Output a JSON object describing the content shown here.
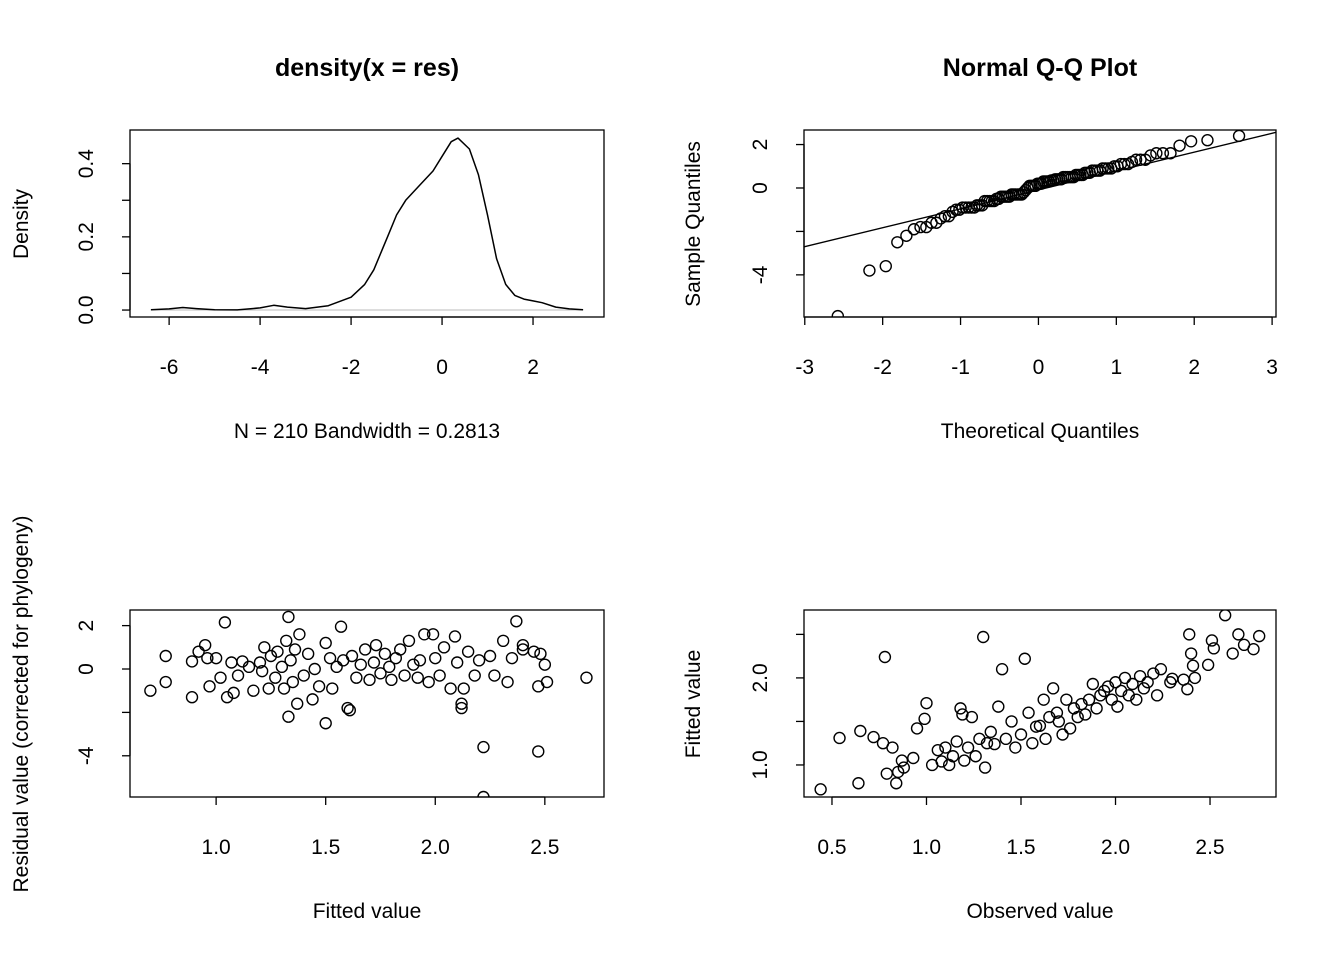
{
  "chart_data": [
    {
      "type": "line",
      "title": "density(x = res)",
      "xlabel": "N = 210   Bandwidth = 0.2813",
      "ylabel": "Density",
      "xlim": [
        -6.86,
        3.56
      ],
      "ylim": [
        -0.019,
        0.492
      ],
      "xticks": [
        -6,
        -4,
        -2,
        0,
        2
      ],
      "xtick_labels": [
        "-6",
        "-4",
        "-2",
        "0",
        "2"
      ],
      "yticks": [
        0.0,
        0.1,
        0.2,
        0.3,
        0.4
      ],
      "ytick_labels": [
        "0.0",
        "",
        "0.2",
        "",
        "0.4"
      ],
      "baseline": 0,
      "x": [
        -6.4,
        -6.0,
        -5.7,
        -5.4,
        -5.0,
        -4.5,
        -4.0,
        -3.7,
        -3.4,
        -3.0,
        -2.5,
        -2.0,
        -1.7,
        -1.5,
        -1.2,
        -1.0,
        -0.8,
        -0.5,
        -0.2,
        0.0,
        0.2,
        0.35,
        0.6,
        0.8,
        1.0,
        1.2,
        1.4,
        1.6,
        1.8,
        2.0,
        2.2,
        2.5,
        2.8,
        3.1
      ],
      "y": [
        0.001,
        0.003,
        0.007,
        0.004,
        0.001,
        0.0005,
        0.006,
        0.013,
        0.008,
        0.004,
        0.012,
        0.035,
        0.07,
        0.11,
        0.2,
        0.26,
        0.3,
        0.34,
        0.38,
        0.42,
        0.46,
        0.47,
        0.44,
        0.37,
        0.26,
        0.14,
        0.07,
        0.04,
        0.03,
        0.025,
        0.02,
        0.008,
        0.003,
        0.001
      ]
    },
    {
      "type": "scatter",
      "title": "Normal Q-Q Plot",
      "xlabel": "Theoretical Quantiles",
      "ylabel": "Sample Quantiles",
      "xlim": [
        -3.01,
        3.05
      ],
      "ylim": [
        -5.94,
        2.67
      ],
      "xticks": [
        -3,
        -2,
        -1,
        0,
        1,
        2,
        3
      ],
      "xtick_labels": [
        "-3",
        "-2",
        "-1",
        "0",
        "1",
        "2",
        "3"
      ],
      "yticks": [
        2,
        0,
        -2,
        -4
      ],
      "ytick_labels": [
        "2",
        "0",
        "",
        "-4"
      ],
      "sample_source": "residuals of panel 3",
      "qqline": {
        "intercept": -0.09,
        "slope": 0.87
      }
    },
    {
      "type": "scatter",
      "title": "",
      "xlabel": "Fitted value",
      "ylabel": "Residual value (corrected for phylogeny)",
      "xlim": [
        0.607,
        2.77
      ],
      "ylim": [
        -5.9,
        2.72
      ],
      "xticks": [
        1.0,
        1.5,
        2.0,
        2.5
      ],
      "xtick_labels": [
        "1.0",
        "1.5",
        "2.0",
        "2.5"
      ],
      "yticks": [
        2,
        0,
        -2,
        -4
      ],
      "ytick_labels": [
        "2",
        "0",
        "",
        "-4"
      ],
      "points": [
        [
          0.7,
          -1.0
        ],
        [
          0.77,
          0.6
        ],
        [
          0.77,
          -0.6
        ],
        [
          0.89,
          0.35
        ],
        [
          0.89,
          -1.3
        ],
        [
          0.92,
          0.8
        ],
        [
          0.95,
          1.1
        ],
        [
          0.96,
          0.5
        ],
        [
          0.97,
          -0.8
        ],
        [
          1.0,
          0.5
        ],
        [
          1.02,
          -0.4
        ],
        [
          1.04,
          2.15
        ],
        [
          1.05,
          -1.3
        ],
        [
          1.07,
          0.3
        ],
        [
          1.08,
          -1.1
        ],
        [
          1.1,
          -0.3
        ],
        [
          1.12,
          0.35
        ],
        [
          1.15,
          0.1
        ],
        [
          1.17,
          -1.0
        ],
        [
          1.2,
          0.3
        ],
        [
          1.21,
          -0.1
        ],
        [
          1.22,
          1.0
        ],
        [
          1.24,
          -0.9
        ],
        [
          1.25,
          0.6
        ],
        [
          1.27,
          -0.4
        ],
        [
          1.28,
          0.8
        ],
        [
          1.3,
          0.1
        ],
        [
          1.31,
          -0.9
        ],
        [
          1.32,
          1.3
        ],
        [
          1.33,
          2.4
        ],
        [
          1.33,
          -2.2
        ],
        [
          1.34,
          0.4
        ],
        [
          1.35,
          -0.6
        ],
        [
          1.36,
          0.9
        ],
        [
          1.37,
          -1.6
        ],
        [
          1.38,
          1.6
        ],
        [
          1.4,
          -0.3
        ],
        [
          1.42,
          0.7
        ],
        [
          1.44,
          -1.4
        ],
        [
          1.45,
          0.0
        ],
        [
          1.47,
          -0.8
        ],
        [
          1.5,
          1.2
        ],
        [
          1.5,
          -2.5
        ],
        [
          1.52,
          0.5
        ],
        [
          1.53,
          -0.9
        ],
        [
          1.55,
          0.1
        ],
        [
          1.57,
          1.95
        ],
        [
          1.58,
          0.4
        ],
        [
          1.6,
          -1.8
        ],
        [
          1.61,
          -1.9
        ],
        [
          1.62,
          0.6
        ],
        [
          1.64,
          -0.4
        ],
        [
          1.66,
          0.2
        ],
        [
          1.68,
          0.9
        ],
        [
          1.7,
          -0.5
        ],
        [
          1.72,
          0.3
        ],
        [
          1.73,
          1.1
        ],
        [
          1.75,
          -0.2
        ],
        [
          1.77,
          0.7
        ],
        [
          1.79,
          0.1
        ],
        [
          1.8,
          -0.5
        ],
        [
          1.82,
          0.5
        ],
        [
          1.84,
          0.9
        ],
        [
          1.86,
          -0.3
        ],
        [
          1.88,
          1.3
        ],
        [
          1.9,
          0.2
        ],
        [
          1.92,
          -0.4
        ],
        [
          1.93,
          0.4
        ],
        [
          1.95,
          1.6
        ],
        [
          1.97,
          -0.6
        ],
        [
          1.99,
          1.6
        ],
        [
          2.0,
          0.5
        ],
        [
          2.02,
          -0.3
        ],
        [
          2.04,
          1.0
        ],
        [
          2.07,
          -0.9
        ],
        [
          2.09,
          1.5
        ],
        [
          2.1,
          0.3
        ],
        [
          2.12,
          -1.6
        ],
        [
          2.12,
          -1.8
        ],
        [
          2.13,
          -0.9
        ],
        [
          2.15,
          0.8
        ],
        [
          2.18,
          -0.3
        ],
        [
          2.2,
          0.4
        ],
        [
          2.22,
          -3.6
        ],
        [
          2.22,
          -5.9
        ],
        [
          2.25,
          0.6
        ],
        [
          2.27,
          -0.3
        ],
        [
          2.31,
          1.3
        ],
        [
          2.33,
          -0.6
        ],
        [
          2.35,
          0.5
        ],
        [
          2.37,
          2.2
        ],
        [
          2.4,
          1.1
        ],
        [
          2.4,
          0.9
        ],
        [
          2.45,
          0.8
        ],
        [
          2.47,
          -3.8
        ],
        [
          2.47,
          -0.8
        ],
        [
          2.48,
          0.7
        ],
        [
          2.5,
          0.2
        ],
        [
          2.51,
          -0.6
        ],
        [
          2.69,
          -0.4
        ]
      ]
    },
    {
      "type": "scatter",
      "title": "",
      "xlabel": "Observed value",
      "ylabel": "Fitted value",
      "xlim": [
        0.352,
        2.849
      ],
      "ylim": [
        0.632,
        2.78
      ],
      "xticks": [
        0.5,
        1.0,
        1.5,
        2.0,
        2.5
      ],
      "xtick_labels": [
        "0.5",
        "1.0",
        "1.5",
        "2.0",
        "2.5"
      ],
      "yticks": [
        1.0,
        1.5,
        2.0,
        2.5
      ],
      "ytick_labels": [
        "1.0",
        "",
        "2.0",
        ""
      ],
      "points": [
        [
          0.44,
          0.72
        ],
        [
          0.54,
          1.31
        ],
        [
          0.64,
          0.79
        ],
        [
          0.65,
          1.39
        ],
        [
          0.72,
          1.32
        ],
        [
          0.77,
          1.25
        ],
        [
          0.78,
          2.24
        ],
        [
          0.79,
          0.9
        ],
        [
          0.82,
          1.2
        ],
        [
          0.84,
          0.79
        ],
        [
          0.85,
          0.92
        ],
        [
          0.87,
          1.05
        ],
        [
          0.88,
          0.97
        ],
        [
          0.93,
          1.08
        ],
        [
          0.95,
          1.42
        ],
        [
          0.99,
          1.53
        ],
        [
          1.0,
          1.71
        ],
        [
          1.03,
          1.0
        ],
        [
          1.06,
          1.17
        ],
        [
          1.08,
          1.04
        ],
        [
          1.1,
          1.2
        ],
        [
          1.12,
          1.0
        ],
        [
          1.14,
          1.1
        ],
        [
          1.16,
          1.27
        ],
        [
          1.18,
          1.65
        ],
        [
          1.19,
          1.58
        ],
        [
          1.2,
          1.05
        ],
        [
          1.22,
          1.2
        ],
        [
          1.24,
          1.55
        ],
        [
          1.26,
          1.1
        ],
        [
          1.28,
          1.3
        ],
        [
          1.3,
          2.47
        ],
        [
          1.31,
          0.97
        ],
        [
          1.32,
          1.25
        ],
        [
          1.34,
          1.38
        ],
        [
          1.36,
          1.24
        ],
        [
          1.38,
          1.67
        ],
        [
          1.4,
          2.1
        ],
        [
          1.42,
          1.3
        ],
        [
          1.45,
          1.5
        ],
        [
          1.47,
          1.2
        ],
        [
          1.5,
          1.35
        ],
        [
          1.52,
          2.22
        ],
        [
          1.54,
          1.6
        ],
        [
          1.56,
          1.25
        ],
        [
          1.58,
          1.44
        ],
        [
          1.6,
          1.45
        ],
        [
          1.62,
          1.75
        ],
        [
          1.63,
          1.3
        ],
        [
          1.65,
          1.55
        ],
        [
          1.67,
          1.88
        ],
        [
          1.69,
          1.6
        ],
        [
          1.7,
          1.5
        ],
        [
          1.72,
          1.35
        ],
        [
          1.74,
          1.75
        ],
        [
          1.76,
          1.42
        ],
        [
          1.78,
          1.65
        ],
        [
          1.8,
          1.55
        ],
        [
          1.82,
          1.7
        ],
        [
          1.84,
          1.58
        ],
        [
          1.86,
          1.75
        ],
        [
          1.88,
          1.93
        ],
        [
          1.9,
          1.65
        ],
        [
          1.92,
          1.8
        ],
        [
          1.94,
          1.85
        ],
        [
          1.96,
          1.9
        ],
        [
          1.98,
          1.75
        ],
        [
          2.0,
          1.95
        ],
        [
          2.01,
          1.67
        ],
        [
          2.03,
          1.85
        ],
        [
          2.05,
          2.0
        ],
        [
          2.07,
          1.8
        ],
        [
          2.09,
          1.93
        ],
        [
          2.11,
          1.75
        ],
        [
          2.13,
          2.02
        ],
        [
          2.15,
          1.88
        ],
        [
          2.17,
          1.95
        ],
        [
          2.2,
          2.05
        ],
        [
          2.22,
          1.8
        ],
        [
          2.24,
          2.1
        ],
        [
          2.29,
          1.95
        ],
        [
          2.3,
          1.99
        ],
        [
          2.36,
          1.98
        ],
        [
          2.38,
          1.87
        ],
        [
          2.39,
          2.5
        ],
        [
          2.4,
          2.28
        ],
        [
          2.41,
          2.14
        ],
        [
          2.42,
          2.0
        ],
        [
          2.49,
          2.15
        ],
        [
          2.51,
          2.43
        ],
        [
          2.52,
          2.34
        ],
        [
          2.58,
          2.72
        ],
        [
          2.62,
          2.28
        ],
        [
          2.65,
          2.5
        ],
        [
          2.68,
          2.38
        ],
        [
          2.73,
          2.33
        ],
        [
          2.76,
          2.48
        ]
      ]
    }
  ]
}
